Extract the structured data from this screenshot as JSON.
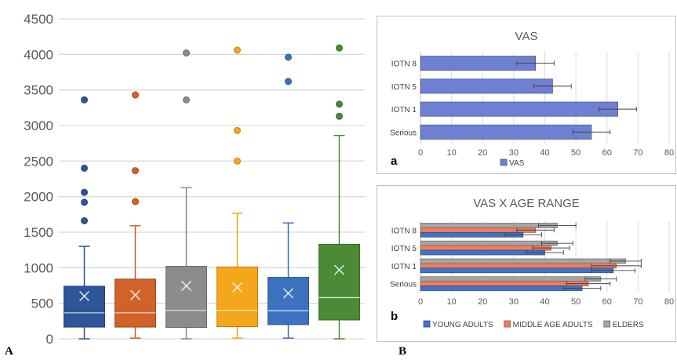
{
  "panel_labels": {
    "A": "A",
    "B": "B"
  },
  "chart_data": [
    {
      "type": "box",
      "ylim": [
        0,
        4500
      ],
      "yticks": [
        0,
        500,
        1000,
        1500,
        2000,
        2500,
        3000,
        3500,
        4000,
        4500
      ],
      "grid": true,
      "boxes": [
        {
          "color": "#2e5597",
          "whisker_low": 0,
          "q1": 165,
          "median": 365,
          "q3": 740,
          "whisker_high": 1300,
          "mean": 600,
          "outliers": [
            1660,
            1920,
            2060,
            2400,
            3360
          ]
        },
        {
          "color": "#d0622a",
          "whisker_low": 10,
          "q1": 165,
          "median": 365,
          "q3": 840,
          "whisker_high": 1590,
          "mean": 615,
          "outliers": [
            1930,
            2365,
            3430
          ]
        },
        {
          "color": "#8c8c8c",
          "whisker_low": 0,
          "q1": 160,
          "median": 400,
          "q3": 1020,
          "whisker_high": 2125,
          "mean": 745,
          "outliers": [
            3360,
            4020
          ]
        },
        {
          "color": "#f4a71c",
          "whisker_low": 10,
          "q1": 170,
          "median": 400,
          "q3": 1010,
          "whisker_high": 1765,
          "mean": 725,
          "outliers": [
            2500,
            2930,
            4060
          ]
        },
        {
          "color": "#3a72c0",
          "whisker_low": 10,
          "q1": 200,
          "median": 395,
          "q3": 865,
          "whisker_high": 1630,
          "mean": 640,
          "outliers": [
            3620,
            3960
          ]
        },
        {
          "color": "#4c8a35",
          "whisker_low": 0,
          "q1": 265,
          "median": 580,
          "q3": 1330,
          "whisker_high": 2860,
          "mean": 970,
          "outliers": [
            3130,
            3300,
            4090
          ]
        }
      ]
    },
    {
      "type": "bar",
      "orientation": "horizontal",
      "title": "VAS",
      "panel_letter": "a",
      "categories": [
        "IOTN 8",
        "IOTN 5",
        "IOTN 1",
        "Serious"
      ],
      "xlim": [
        0,
        80
      ],
      "xticks": [
        0,
        10,
        20,
        30,
        40,
        50,
        60,
        70,
        80
      ],
      "series": [
        {
          "name": "VAS",
          "color": "#6f7fd1",
          "values": [
            37,
            42.5,
            63.5,
            55
          ],
          "errors": [
            6,
            6,
            6,
            6
          ]
        }
      ],
      "legend_position": "bottom"
    },
    {
      "type": "bar",
      "orientation": "horizontal",
      "title": "VAS X AGE RANGE",
      "panel_letter": "b",
      "categories": [
        "IOTN 8",
        "IOTN 5",
        "IOTN 1",
        "Serious"
      ],
      "xlim": [
        0,
        80
      ],
      "xticks": [
        0,
        10,
        20,
        30,
        40,
        50,
        60,
        70,
        80
      ],
      "series": [
        {
          "name": "ELDERS",
          "color": "#a5a5a5",
          "values": [
            44,
            44,
            66,
            58
          ],
          "errors": [
            6,
            5,
            5,
            5
          ]
        },
        {
          "name": "MIDDLE AGE ADULTS",
          "color": "#ed7d5f",
          "values": [
            37,
            42,
            63,
            54
          ],
          "errors": [
            6,
            6,
            8,
            7
          ]
        },
        {
          "name": "YOUNG ADULTS",
          "color": "#4472c4",
          "values": [
            33,
            40,
            62,
            52
          ],
          "errors": [
            6,
            6,
            7,
            6
          ]
        }
      ],
      "legend_position": "bottom"
    }
  ]
}
